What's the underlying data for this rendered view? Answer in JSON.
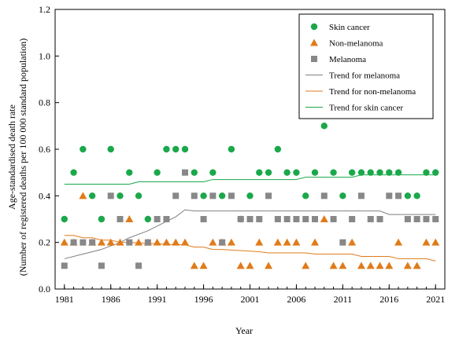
{
  "chart_data": {
    "type": "scatter",
    "title": "",
    "xlabel": "Year",
    "ylabel": "Age-standardised death rate",
    "ylabel_sub": "(Number of registered deaths per 100 000 standard population)",
    "xlim": [
      1980,
      2022
    ],
    "ylim": [
      0,
      1.2
    ],
    "xticks": [
      1981,
      1986,
      1991,
      1996,
      2001,
      2006,
      2011,
      2016,
      2021
    ],
    "yticks": [
      "0.0",
      "0.2",
      "0.4",
      "0.6",
      "0.8",
      "1.0",
      "1.2"
    ],
    "legend_position": "top-right",
    "grid": false,
    "series": [
      {
        "name": "Skin cancer",
        "kind": "points",
        "marker": "circle",
        "color": "#1aa84a",
        "x": [
          1981,
          1982,
          1983,
          1984,
          1985,
          1986,
          1987,
          1988,
          1989,
          1990,
          1991,
          1992,
          1993,
          1994,
          1995,
          1996,
          1997,
          1998,
          1999,
          2000,
          2001,
          2002,
          2003,
          2004,
          2005,
          2006,
          2007,
          2008,
          2009,
          2010,
          2011,
          2012,
          2013,
          2014,
          2015,
          2016,
          2017,
          2018,
          2019,
          2020,
          2021
        ],
        "y": [
          0.3,
          0.5,
          0.6,
          0.4,
          0.3,
          0.6,
          0.4,
          0.5,
          0.4,
          0.3,
          0.5,
          0.6,
          0.6,
          0.6,
          0.5,
          0.4,
          0.5,
          0.4,
          0.6,
          0.3,
          0.4,
          0.5,
          0.5,
          0.6,
          0.5,
          0.5,
          0.4,
          0.5,
          0.7,
          0.5,
          0.4,
          0.5,
          0.5,
          0.5,
          0.5,
          0.5,
          0.5,
          0.4,
          0.4,
          0.5,
          0.5
        ]
      },
      {
        "name": "Non-melanoma",
        "kind": "points",
        "marker": "triangle",
        "color": "#e07b1a",
        "x": [
          1981,
          1982,
          1983,
          1984,
          1985,
          1986,
          1987,
          1988,
          1989,
          1990,
          1991,
          1992,
          1993,
          1994,
          1995,
          1996,
          1997,
          1998,
          1999,
          2000,
          2001,
          2002,
          2003,
          2004,
          2005,
          2006,
          2007,
          2008,
          2009,
          2010,
          2011,
          2012,
          2013,
          2014,
          2015,
          2016,
          2017,
          2018,
          2019,
          2020,
          2021
        ],
        "y": [
          0.2,
          0.2,
          0.4,
          0.2,
          0.2,
          0.2,
          0.2,
          0.3,
          0.2,
          0.2,
          0.2,
          0.2,
          0.2,
          0.2,
          0.1,
          0.1,
          0.2,
          0.2,
          0.2,
          0.1,
          0.1,
          0.2,
          0.1,
          0.2,
          0.2,
          0.2,
          0.1,
          0.2,
          0.3,
          0.1,
          0.1,
          0.2,
          0.1,
          0.1,
          0.1,
          0.1,
          0.2,
          0.1,
          0.1,
          0.2,
          0.2
        ]
      },
      {
        "name": "Melanoma",
        "kind": "points",
        "marker": "square",
        "color": "#888888",
        "x": [
          1981,
          1982,
          1983,
          1984,
          1985,
          1986,
          1987,
          1988,
          1989,
          1990,
          1991,
          1992,
          1993,
          1994,
          1995,
          1996,
          1997,
          1998,
          1999,
          2000,
          2001,
          2002,
          2003,
          2004,
          2005,
          2006,
          2007,
          2008,
          2009,
          2010,
          2011,
          2012,
          2013,
          2014,
          2015,
          2016,
          2017,
          2018,
          2019,
          2020,
          2021
        ],
        "y": [
          0.1,
          0.2,
          0.2,
          0.2,
          0.1,
          0.4,
          0.3,
          0.2,
          0.1,
          0.2,
          0.3,
          0.3,
          0.4,
          0.5,
          0.4,
          0.3,
          0.4,
          0.2,
          0.4,
          0.3,
          0.3,
          0.3,
          0.4,
          0.3,
          0.3,
          0.3,
          0.3,
          0.3,
          0.4,
          0.3,
          0.2,
          0.3,
          0.4,
          0.3,
          0.3,
          0.4,
          0.4,
          0.3,
          0.3,
          0.3,
          0.3
        ]
      },
      {
        "name": "Trend for melanoma",
        "kind": "line",
        "color": "#808080",
        "x": [
          1981,
          1983,
          1985,
          1987,
          1988,
          1990,
          1992,
          1993,
          1994,
          1995,
          2000,
          2005,
          2010,
          2015,
          2016,
          2021
        ],
        "y": [
          0.13,
          0.15,
          0.17,
          0.2,
          0.22,
          0.25,
          0.29,
          0.31,
          0.34,
          0.335,
          0.335,
          0.335,
          0.335,
          0.335,
          0.32,
          0.32
        ]
      },
      {
        "name": "Trend for non-melanoma",
        "kind": "line",
        "color": "#e07b1a",
        "x": [
          1981,
          1982,
          1983,
          1984,
          1985,
          1986,
          1987,
          1988,
          1993,
          1994,
          1995,
          1996,
          1997,
          1998,
          2002,
          2003,
          2007,
          2008,
          2012,
          2013,
          2016,
          2017,
          2020,
          2021
        ],
        "y": [
          0.23,
          0.23,
          0.22,
          0.22,
          0.21,
          0.21,
          0.2,
          0.2,
          0.19,
          0.19,
          0.18,
          0.18,
          0.17,
          0.17,
          0.16,
          0.155,
          0.155,
          0.15,
          0.15,
          0.14,
          0.14,
          0.13,
          0.13,
          0.12
        ]
      },
      {
        "name": "Trend for skin cancer",
        "kind": "line",
        "color": "#1aa84a",
        "x": [
          1981,
          1988,
          1989,
          1996,
          1997,
          2006,
          2007,
          2012,
          2013,
          2021
        ],
        "y": [
          0.45,
          0.45,
          0.46,
          0.46,
          0.47,
          0.47,
          0.48,
          0.48,
          0.49,
          0.49
        ]
      }
    ]
  }
}
